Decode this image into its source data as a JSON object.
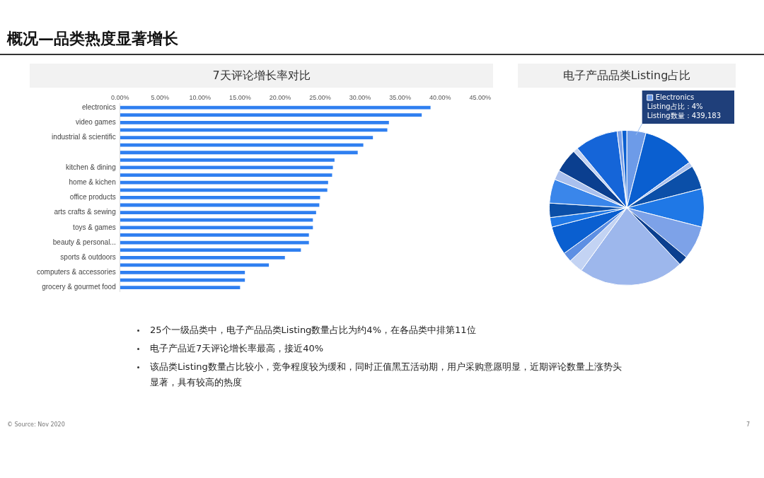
{
  "chart_data": [
    {
      "type": "bar",
      "title": "7天评论增长率对比",
      "orientation": "horizontal",
      "color": "#2f7ff0",
      "categories": [
        "electronics",
        null,
        "video games",
        null,
        "industrial & scientific",
        null,
        null,
        null,
        "kitchen & dining",
        null,
        "home & kichen",
        null,
        "office products",
        null,
        "arts crafts & sewing",
        null,
        "toys & games",
        null,
        "beauty & personal...",
        null,
        "sports & outdoors",
        null,
        "computers & accessories",
        null,
        "grocery & gourmet food"
      ],
      "values": [
        38.8,
        37.7,
        33.6,
        33.4,
        31.6,
        30.4,
        29.7,
        26.8,
        26.6,
        26.5,
        26.0,
        25.9,
        25.0,
        24.9,
        24.5,
        24.1,
        24.1,
        23.6,
        23.6,
        22.6,
        20.6,
        18.6,
        15.6,
        15.6,
        15.0
      ],
      "xlim": [
        0,
        45
      ],
      "xticks": [
        {
          "value": 0,
          "label": "0.00%"
        },
        {
          "value": 5,
          "label": "5.00%"
        },
        {
          "value": 10,
          "label": "10.00%"
        },
        {
          "value": 15,
          "label": "15.00%"
        },
        {
          "value": 20,
          "label": "20.00%"
        },
        {
          "value": 25,
          "label": "25.00%"
        },
        {
          "value": 30,
          "label": "30.00%"
        },
        {
          "value": 35,
          "label": "35.00%"
        },
        {
          "value": 40,
          "label": "40.00%"
        },
        {
          "value": 45,
          "label": "45.00%"
        }
      ]
    },
    {
      "type": "pie",
      "title": "电子产品品类Listing占比",
      "categories": [
        "Electronics",
        null,
        null,
        null,
        null,
        null,
        null,
        null,
        null,
        null,
        null,
        null,
        null,
        null,
        null,
        null,
        null,
        null,
        null,
        null
      ],
      "values": [
        4,
        11,
        1,
        5,
        8,
        7,
        2,
        22,
        3,
        2,
        6,
        2,
        3,
        5,
        2,
        5,
        1,
        9,
        1,
        1
      ],
      "colors": [
        "#6d9be8",
        "#0a5fd0",
        "#a9c0ee",
        "#0b4fa8",
        "#1f78e6",
        "#7da2e8",
        "#0b3f8f",
        "#9db7ec",
        "#c3d3f3",
        "#5d8fe3",
        "#0a5fd0",
        "#1f78e6",
        "#0b4fa8",
        "#3a86ea",
        "#a9c0ee",
        "#0b3f8f",
        "#c3d3f3",
        "#1565d8",
        "#7da2e8",
        "#0a5fd0"
      ],
      "annotations": [
        "Listing占比：4%",
        "Listing数量：439,183"
      ]
    },
    {
      "type": "other",
      "title": "概况—品类热度显著增长",
      "annotations": [
        "25个一级品类中，电子产品品类Listing数量占比为约4%，在各品类中排第11位",
        "电子产品近7天评论增长率最高，接近40%",
        "该品类Listing数量占比较小，竞争程度较为缓和，同时正值黑五活动期，用户采购意愿明显，近期评论数量上涨势头显著，具有较高的热度",
        "© Source: Nov 2020",
        "7"
      ]
    }
  ]
}
